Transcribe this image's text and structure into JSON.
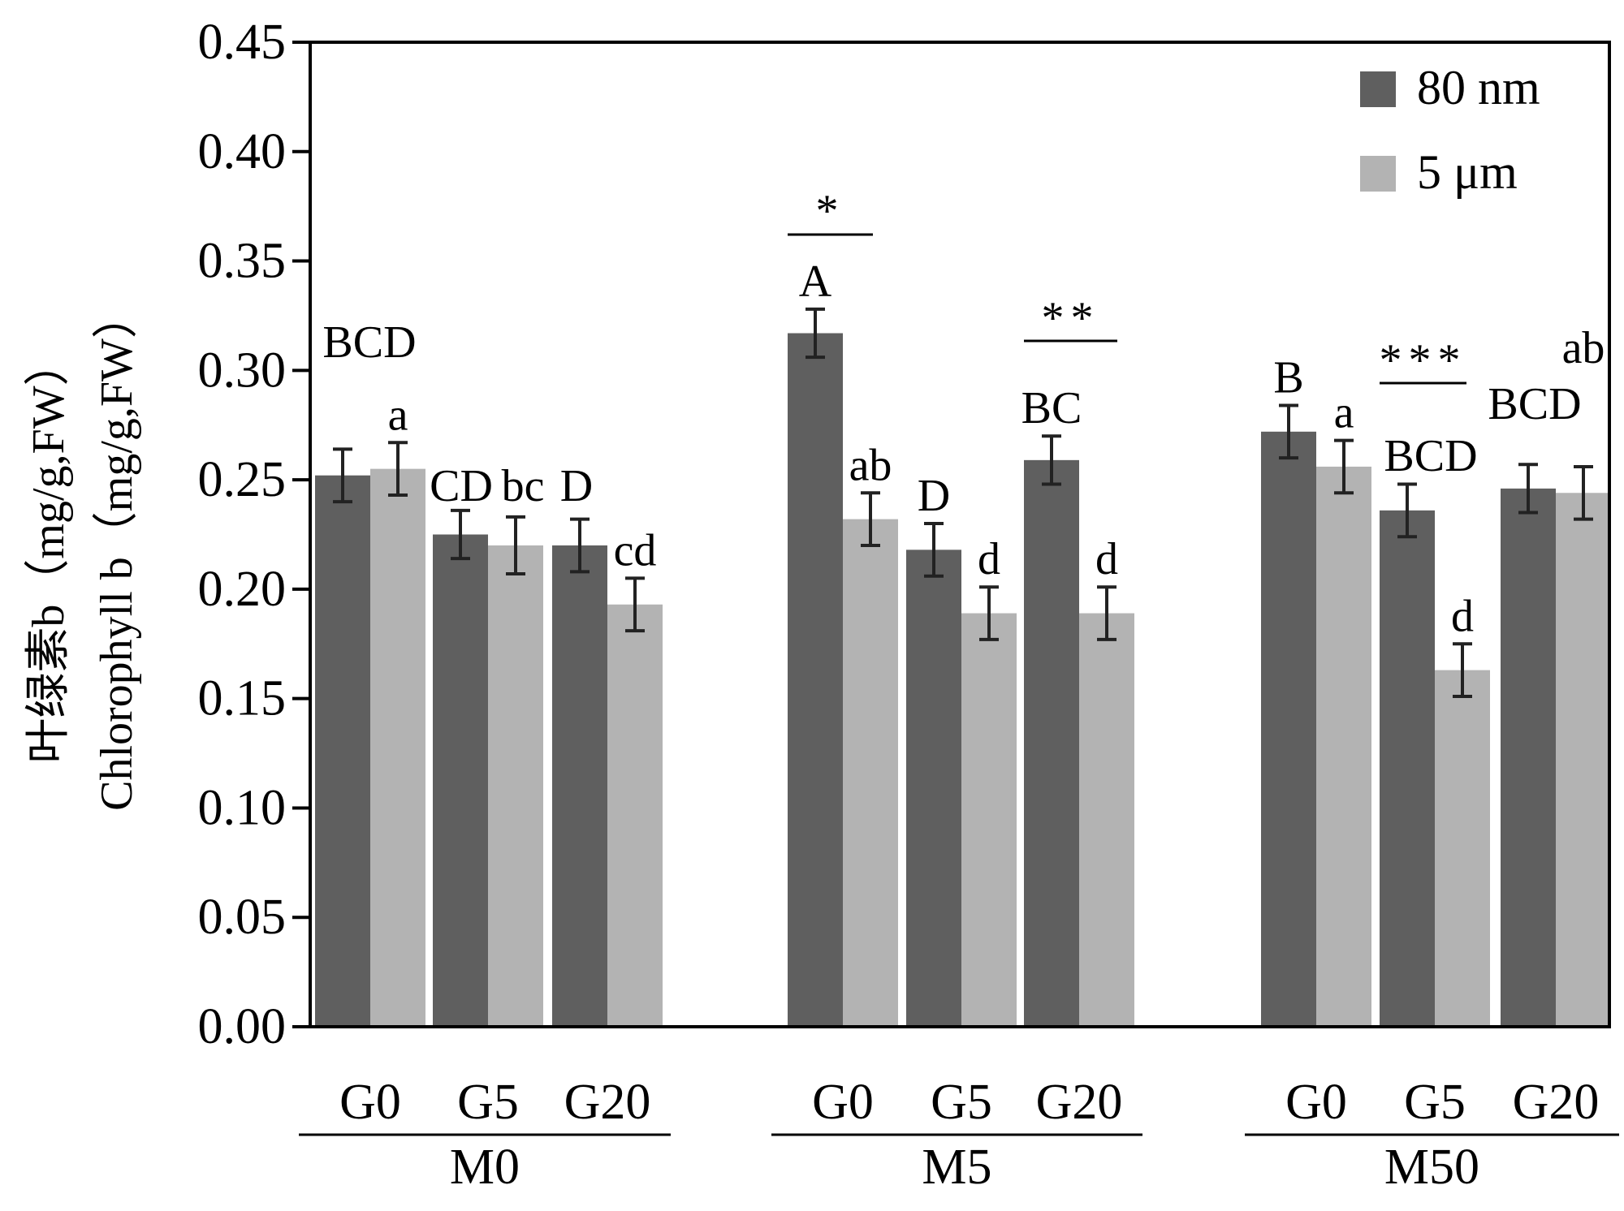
{
  "chart_data": {
    "type": "bar",
    "title": "",
    "ylabel_cn": "叶绿素b（mg/g,FW）",
    "ylabel_en": "Chlorophyll b（mg/g,FW）",
    "ylim": [
      0,
      0.45
    ],
    "y_ticks": [
      "0.00",
      "0.05",
      "0.10",
      "0.15",
      "0.20",
      "0.25",
      "0.30",
      "0.35",
      "0.40",
      "0.45"
    ],
    "groups": [
      {
        "name": "M0",
        "subcategories": [
          "G0",
          "G5",
          "G20"
        ]
      },
      {
        "name": "M5",
        "subcategories": [
          "G0",
          "G5",
          "G20"
        ]
      },
      {
        "name": "M50",
        "subcategories": [
          "G0",
          "G5",
          "G20"
        ]
      }
    ],
    "series": [
      {
        "name": "80 nm",
        "color": "#5f5f5f",
        "values": [
          0.252,
          0.225,
          0.22,
          0.317,
          0.218,
          0.259,
          0.272,
          0.236,
          0.246
        ],
        "errors": [
          0.012,
          0.011,
          0.012,
          0.011,
          0.012,
          0.011,
          0.012,
          0.012,
          0.011
        ],
        "labels": [
          "BCD",
          "CD",
          "D",
          "A",
          "D",
          "BC",
          "B",
          "BCD",
          "BCD"
        ]
      },
      {
        "name": "5 μm",
        "color": "#b3b3b3",
        "values": [
          0.255,
          0.22,
          0.193,
          0.232,
          0.189,
          0.189,
          0.256,
          0.163,
          0.244
        ],
        "errors": [
          0.012,
          0.013,
          0.012,
          0.012,
          0.012,
          0.012,
          0.012,
          0.012,
          0.012
        ],
        "labels": [
          "a",
          "bc",
          "cd",
          "ab",
          "d",
          "d",
          "a",
          "d",
          "ab"
        ]
      }
    ],
    "significance": [
      {
        "group": 1,
        "sub": 0,
        "text": "*"
      },
      {
        "group": 1,
        "sub": 2,
        "text": "**"
      },
      {
        "group": 2,
        "sub": 1,
        "text": "***"
      }
    ],
    "legend_position": "top-right"
  }
}
